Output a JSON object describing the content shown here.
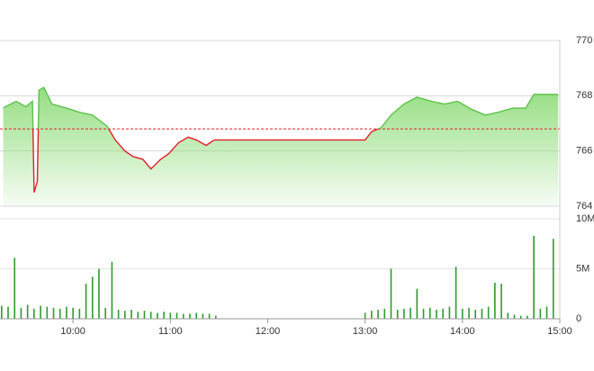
{
  "chart_data": [
    {
      "type": "line",
      "x": [
        557,
        565,
        571,
        575,
        576,
        578,
        579,
        582,
        587,
        596,
        604,
        612,
        621,
        626,
        632,
        637,
        643,
        648,
        654,
        659,
        665,
        671,
        676,
        682,
        687,
        690,
        776,
        780,
        784,
        790,
        796,
        804,
        812,
        821,
        829,
        837,
        846,
        854,
        862,
        871,
        879,
        884,
        899
      ],
      "values": [
        767.56,
        767.8,
        767.6,
        767.8,
        764.5,
        764.9,
        768.2,
        768.3,
        767.7,
        767.55,
        767.4,
        767.3,
        766.9,
        766.4,
        766.0,
        765.8,
        765.7,
        765.35,
        765.7,
        765.9,
        766.3,
        766.5,
        766.4,
        766.2,
        766.4,
        766.4,
        766.4,
        766.4,
        766.7,
        766.85,
        767.3,
        767.7,
        767.95,
        767.8,
        767.7,
        767.8,
        767.5,
        767.3,
        767.4,
        767.55,
        767.55,
        768.05,
        768.05
      ],
      "reference": 766.8,
      "up_color": "#5cc24a",
      "down_color": "#e0202a",
      "fill_color": "#8fdc7a",
      "xlim": [
        555,
        900
      ],
      "ylim": [
        764,
        770
      ],
      "yticks": [
        764,
        766,
        768,
        770
      ],
      "grid": true
    },
    {
      "type": "bar",
      "x": [
        556,
        560,
        564,
        568,
        572,
        576,
        580,
        584,
        588,
        592,
        596,
        600,
        604,
        608,
        612,
        616,
        620,
        624,
        628,
        632,
        636,
        640,
        644,
        648,
        652,
        656,
        660,
        664,
        668,
        672,
        676,
        680,
        684,
        688,
        780,
        784,
        788,
        792,
        796,
        800,
        804,
        808,
        812,
        816,
        820,
        824,
        828,
        832,
        836,
        840,
        844,
        848,
        852,
        856,
        860,
        864,
        868,
        872,
        876,
        880,
        884,
        888,
        892,
        896
      ],
      "values": [
        1.3,
        1.2,
        6.1,
        1.1,
        1.4,
        1.0,
        1.3,
        1.2,
        1.1,
        1.0,
        1.2,
        1.1,
        1.0,
        3.5,
        4.2,
        5.0,
        1.1,
        5.7,
        0.9,
        0.8,
        0.9,
        0.7,
        0.8,
        0.7,
        0.6,
        0.7,
        0.6,
        0.6,
        0.5,
        0.5,
        0.6,
        0.5,
        0.5,
        0.3,
        0.6,
        0.8,
        0.9,
        1.0,
        5.0,
        0.9,
        1.0,
        1.1,
        3.0,
        1.0,
        1.1,
        0.9,
        1.0,
        1.2,
        5.2,
        1.0,
        1.1,
        0.9,
        1.0,
        1.2,
        3.6,
        3.5,
        0.6,
        0.4,
        0.3,
        0.3,
        8.3,
        1.0,
        1.2,
        8.0
      ],
      "color": "#2e9b2e",
      "xlim": [
        555,
        900
      ],
      "ylim": [
        0,
        10
      ],
      "yticks": [
        0,
        {
          "value": 5,
          "label": "5M"
        },
        {
          "value": 10,
          "label": "10M"
        }
      ],
      "xticks": [
        {
          "value": 600,
          "label": "10:00"
        },
        {
          "value": 660,
          "label": "11:00"
        },
        {
          "value": 720,
          "label": "12:00"
        },
        {
          "value": 780,
          "label": "13:00"
        },
        {
          "value": 840,
          "label": "14:00"
        },
        {
          "value": 900,
          "label": "15:00"
        }
      ]
    }
  ]
}
